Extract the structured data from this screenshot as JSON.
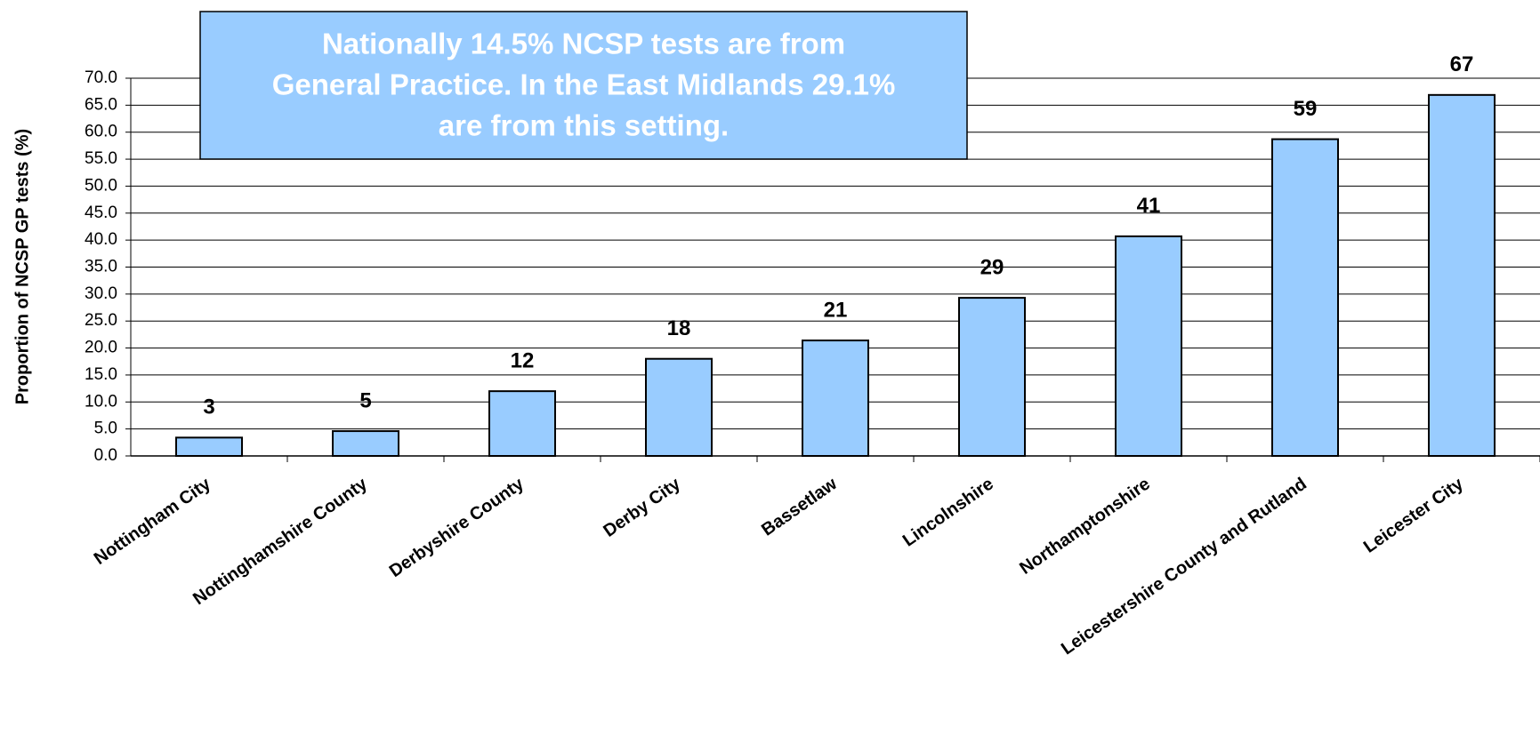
{
  "chart_data": {
    "type": "bar",
    "y_label": "Proportion of NCSP GP tests (%)",
    "annotation": [
      "Nationally 14.5% NCSP  tests are from",
      "General Practice. In the East Midlands 29.1%",
      "are from this setting."
    ],
    "categories": [
      "Nottingham City",
      "Nottinghamshire County",
      "Derbyshire County",
      "Derby City",
      "Bassetlaw",
      "Lincolnshire",
      "Northamptonshire",
      "Leicestershire County and Rutland",
      "Leicester City"
    ],
    "values": [
      3.4,
      4.6,
      12.0,
      18.0,
      21.4,
      29.3,
      40.7,
      58.7,
      66.9
    ],
    "value_labels": [
      "3",
      "5",
      "12",
      "18",
      "21",
      "29",
      "41",
      "59",
      "67"
    ],
    "color": "#99ccff",
    "ylim": [
      0,
      70
    ],
    "yticks": [
      {
        "value": 0,
        "label": "0.0"
      },
      {
        "value": 5,
        "label": "5.0"
      },
      {
        "value": 10,
        "label": "10.0"
      },
      {
        "value": 15,
        "label": "15.0"
      },
      {
        "value": 20,
        "label": "20.0"
      },
      {
        "value": 25,
        "label": "25.0"
      },
      {
        "value": 30,
        "label": "30.0"
      },
      {
        "value": 35,
        "label": "35.0"
      },
      {
        "value": 40,
        "label": "40.0"
      },
      {
        "value": 45,
        "label": "45.0"
      },
      {
        "value": 50,
        "label": "50.0"
      },
      {
        "value": 55,
        "label": "55.0"
      },
      {
        "value": 60,
        "label": "60.0"
      },
      {
        "value": 65,
        "label": "65.0"
      },
      {
        "value": 70,
        "label": "70.0"
      }
    ],
    "grid": true
  }
}
